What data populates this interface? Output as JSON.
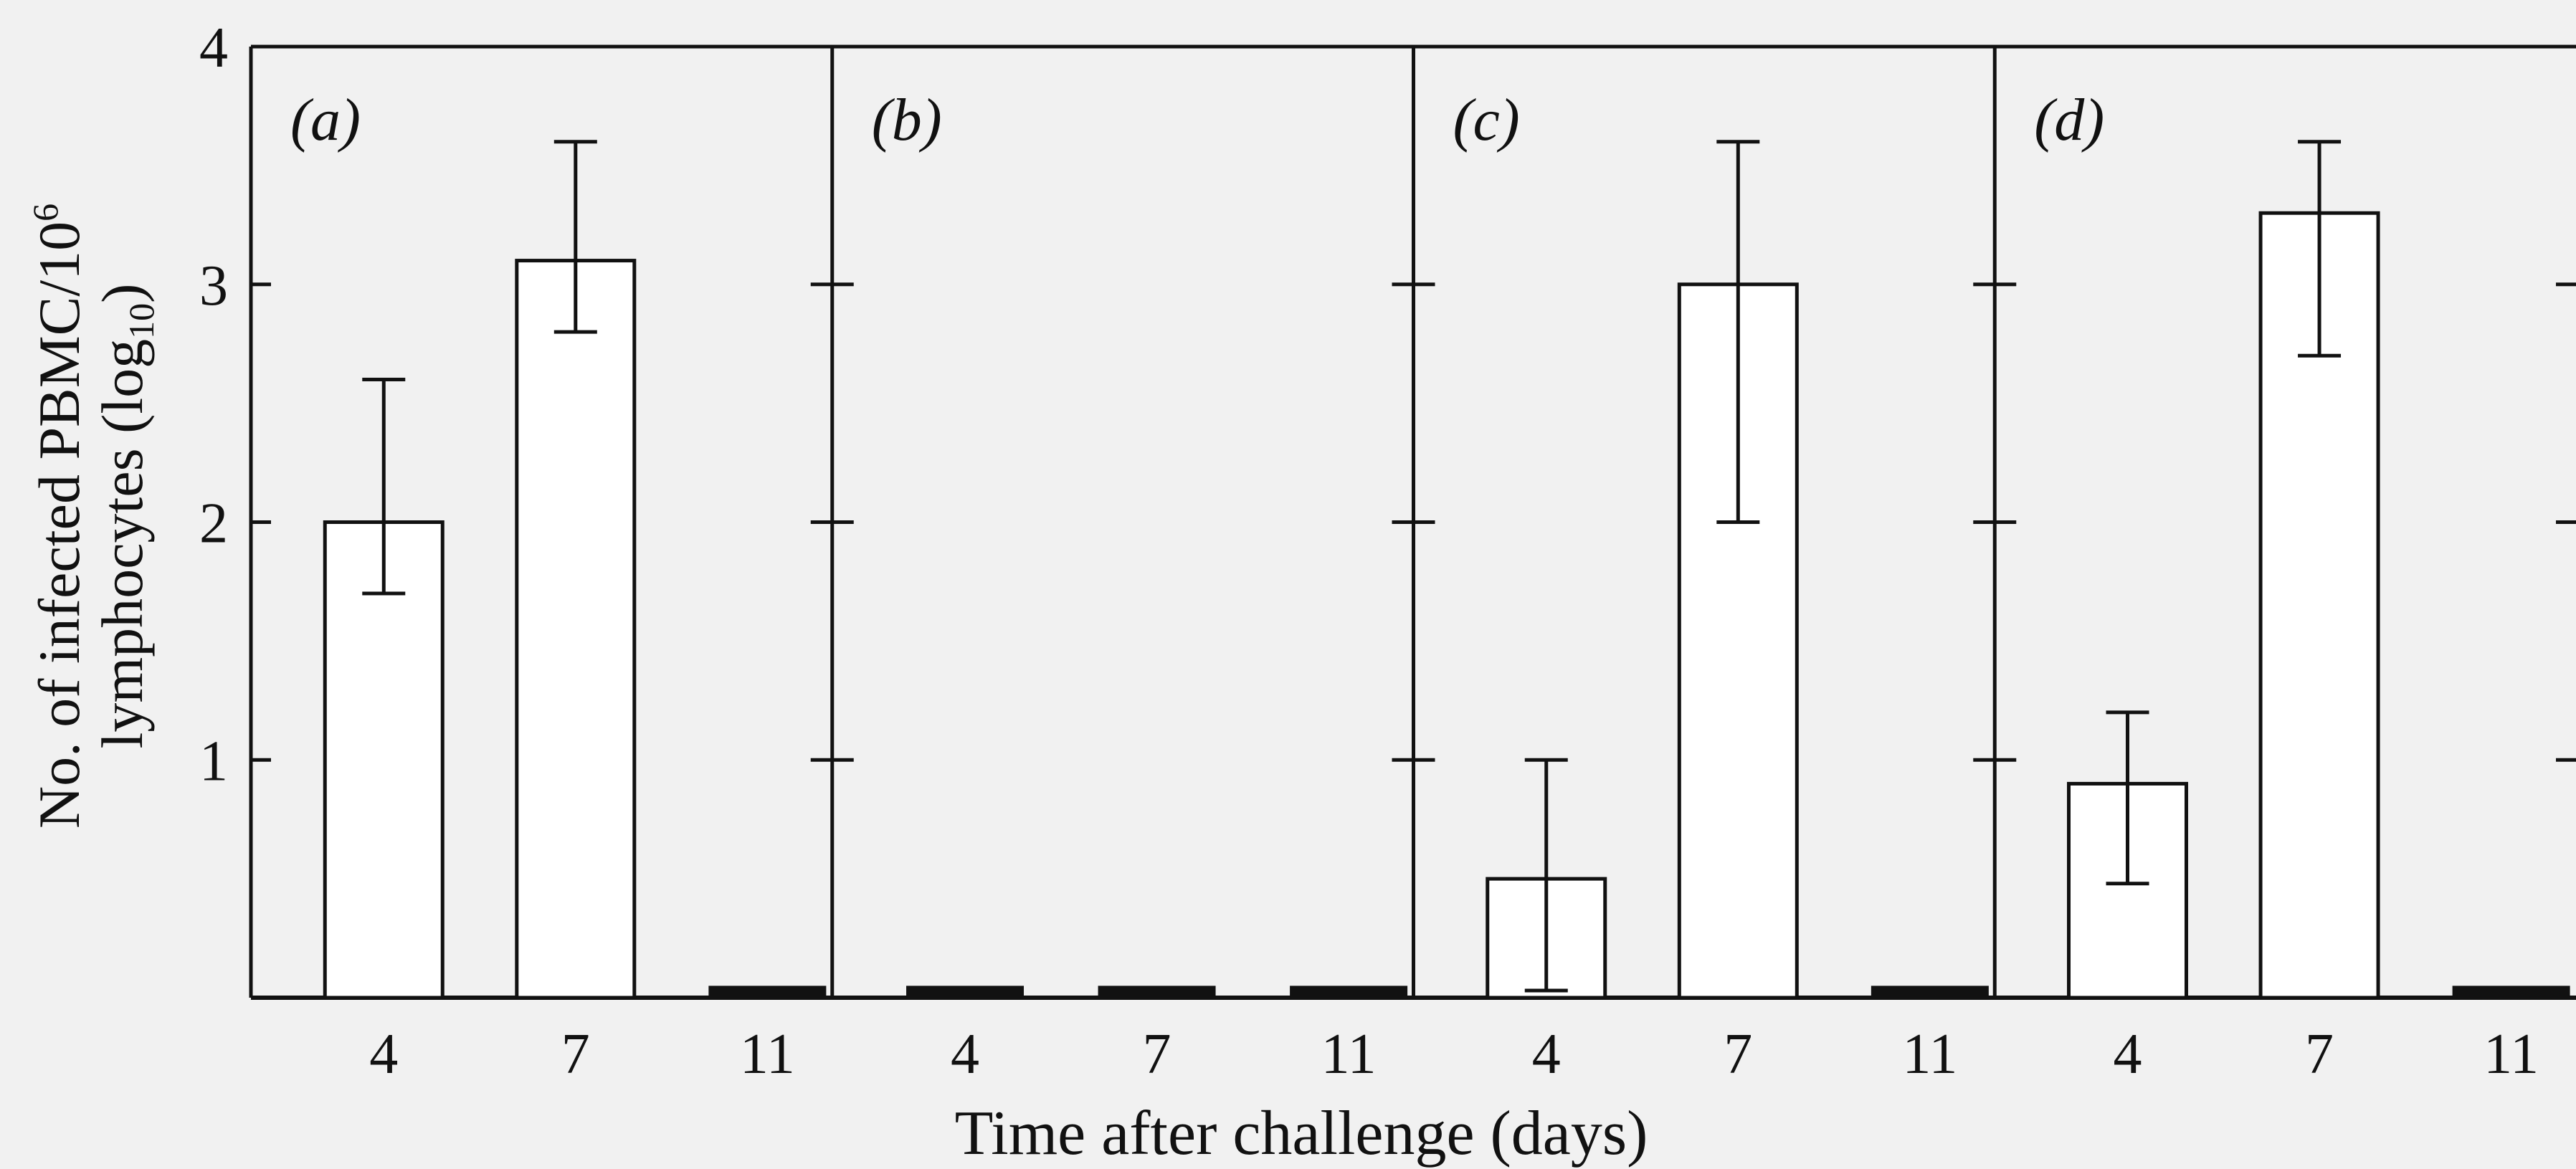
{
  "chart_data": {
    "type": "bar",
    "xlabel": "Time after challenge (days)",
    "ylabel_line1": "No. of infected PBMC/10",
    "ylabel_sup": "6",
    "ylabel_line2": "lymphocytes (log",
    "ylabel_sub": "10",
    "ylabel_close": ")",
    "ylim": [
      0,
      4
    ],
    "y_ticks": [
      "1",
      "2",
      "3",
      "4"
    ],
    "categories": [
      "4",
      "7",
      "11"
    ],
    "panels": [
      {
        "label": "(a)",
        "bars": [
          {
            "x": "4",
            "value": 2.0,
            "err_low": 1.7,
            "err_high": 2.6,
            "filled": false
          },
          {
            "x": "7",
            "value": 3.1,
            "err_low": 2.8,
            "err_high": 3.6,
            "filled": false
          },
          {
            "x": "11",
            "value": 0.05,
            "filled": true
          }
        ]
      },
      {
        "label": "(b)",
        "bars": [
          {
            "x": "4",
            "value": 0.05,
            "filled": true
          },
          {
            "x": "7",
            "value": 0.05,
            "filled": true
          },
          {
            "x": "11",
            "value": 0.05,
            "filled": true
          }
        ]
      },
      {
        "label": "(c)",
        "bars": [
          {
            "x": "4",
            "value": 0.5,
            "err_low": 0.03,
            "err_high": 1.0,
            "filled": false
          },
          {
            "x": "7",
            "value": 3.0,
            "err_low": 2.0,
            "err_high": 3.6,
            "filled": false
          },
          {
            "x": "11",
            "value": 0.05,
            "filled": true
          }
        ]
      },
      {
        "label": "(d)",
        "bars": [
          {
            "x": "4",
            "value": 0.9,
            "err_low": 0.48,
            "err_high": 1.2,
            "filled": false
          },
          {
            "x": "7",
            "value": 3.3,
            "err_low": 2.7,
            "err_high": 3.6,
            "filled": false
          },
          {
            "x": "11",
            "value": 0.05,
            "filled": true
          }
        ]
      }
    ],
    "colors": {
      "background": "#f1f1f1",
      "ink": "#111111",
      "bar_fill": "#ffffff"
    },
    "grid": false
  }
}
